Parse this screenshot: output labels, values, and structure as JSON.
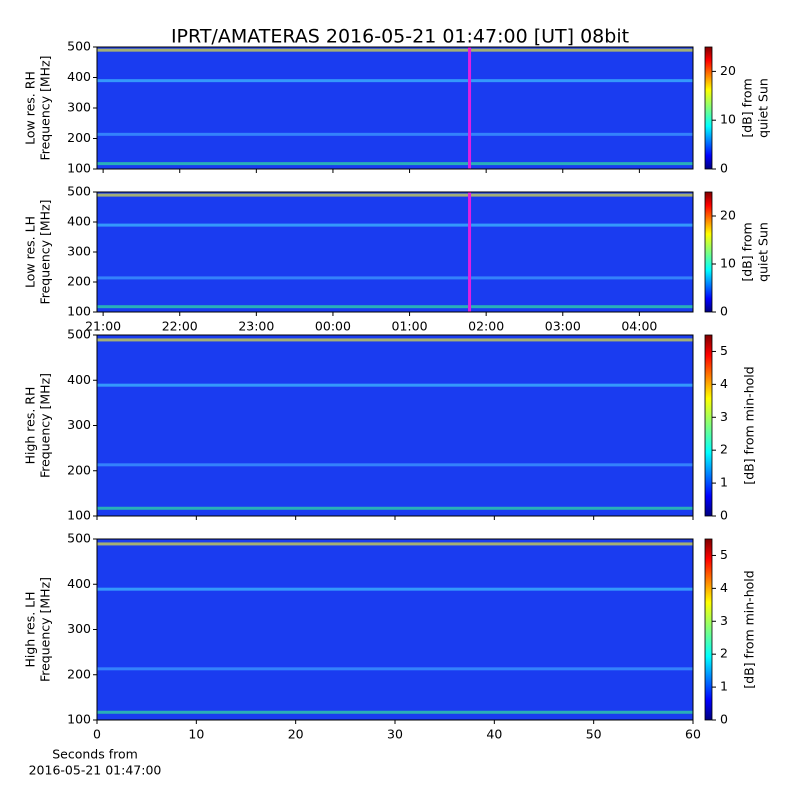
{
  "title": "IPRT/AMATERAS 2016-05-21 01:47:00 [UT]   08bit",
  "chart_data": [
    {
      "type": "spectrogram",
      "ylabel": [
        "Low res. RH",
        "Frequency [MHz]"
      ],
      "ylim": [
        100,
        500
      ],
      "yticks": [
        100,
        200,
        300,
        400,
        500
      ],
      "xlim": [
        20.92,
        28.7
      ],
      "xticks": [
        21,
        22,
        23,
        24,
        25,
        26,
        27,
        28
      ],
      "xtick_labels": false,
      "marker_x": 25.783,
      "marker_color": "#e020e0",
      "colorbar": {
        "label": [
          "[dB] from",
          "quiet Sun"
        ],
        "lim": [
          0,
          25
        ],
        "ticks": [
          0,
          10,
          20
        ]
      }
    },
    {
      "type": "spectrogram",
      "ylabel": [
        "Low res. LH",
        "Frequency [MHz]"
      ],
      "ylim": [
        100,
        500
      ],
      "yticks": [
        100,
        200,
        300,
        400,
        500
      ],
      "xlim": [
        20.92,
        28.7
      ],
      "xticks": [
        {
          "value": 21,
          "label": "21:00"
        },
        {
          "value": 22,
          "label": "22:00"
        },
        {
          "value": 23,
          "label": "23:00"
        },
        {
          "value": 24,
          "label": "00:00"
        },
        {
          "value": 25,
          "label": "01:00"
        },
        {
          "value": 26,
          "label": "02:00"
        },
        {
          "value": 27,
          "label": "03:00"
        },
        {
          "value": 28,
          "label": "04:00"
        }
      ],
      "xtick_labels": true,
      "marker_x": 25.783,
      "marker_color": "#e020e0",
      "colorbar": {
        "label": [
          "[dB] from",
          "quiet Sun"
        ],
        "lim": [
          0,
          25
        ],
        "ticks": [
          0,
          10,
          20
        ]
      }
    },
    {
      "type": "spectrogram",
      "ylabel": [
        "High res. RH",
        "Frequency [MHz]"
      ],
      "ylim": [
        100,
        500
      ],
      "yticks": [
        100,
        200,
        300,
        400,
        500
      ],
      "xlim": [
        0,
        60
      ],
      "xticks": [
        0,
        10,
        20,
        30,
        40,
        50,
        60
      ],
      "xtick_labels": false,
      "colorbar": {
        "label": [
          "[dB] from min-hold"
        ],
        "lim": [
          0,
          5.5
        ],
        "ticks": [
          0,
          1,
          2,
          3,
          4,
          5
        ]
      }
    },
    {
      "type": "spectrogram",
      "ylabel": [
        "High res. LH",
        "Frequency [MHz]"
      ],
      "ylim": [
        100,
        500
      ],
      "yticks": [
        100,
        200,
        300,
        400,
        500
      ],
      "xlim": [
        0,
        60
      ],
      "xticks": [
        0,
        10,
        20,
        30,
        40,
        50,
        60
      ],
      "xtick_labels": true,
      "xlabel": [
        "Seconds from",
        "2016-05-21 01:47:00"
      ],
      "colorbar": {
        "label": [
          "[dB] from min-hold"
        ],
        "lim": [
          0,
          5.5
        ],
        "ticks": [
          0,
          1,
          2,
          3,
          4,
          5
        ]
      }
    }
  ]
}
